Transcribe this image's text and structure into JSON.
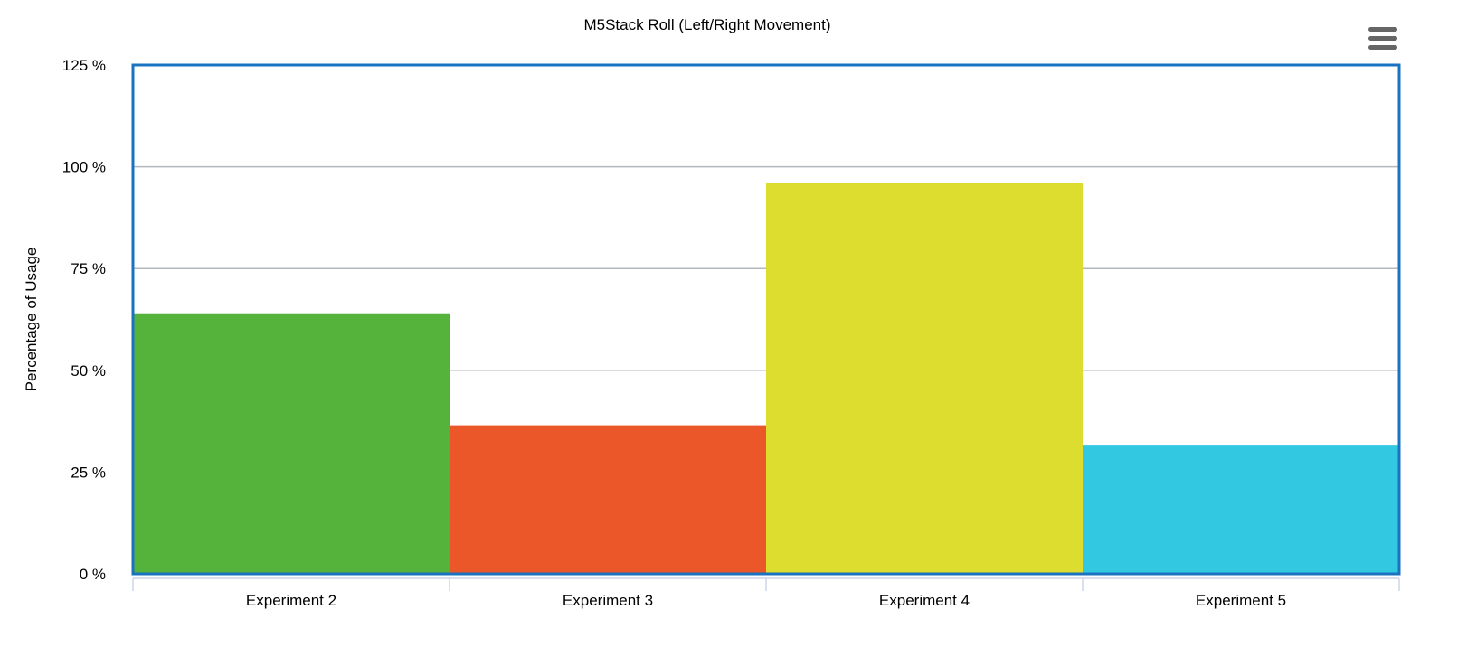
{
  "chart_data": {
    "type": "bar",
    "title": "M5Stack Roll (Left/Right Movement)",
    "xlabel": "",
    "ylabel": "Percentage of Usage",
    "categories": [
      "Experiment 2",
      "Experiment 3",
      "Experiment 4",
      "Experiment 5"
    ],
    "values": [
      64,
      36.5,
      96,
      31.5
    ],
    "colors": [
      "#55b23b",
      "#eb5729",
      "#dcdd2f",
      "#33c8e1"
    ],
    "ylim": [
      0,
      125
    ],
    "yticks": [
      0,
      25,
      50,
      75,
      100,
      125
    ],
    "ytick_labels": [
      "0 %",
      "25 %",
      "50 %",
      "75 %",
      "100 %",
      "125 %"
    ],
    "grid": true,
    "plot_border_color": "#1a73c0",
    "gridline_color": "#b3b8bf"
  },
  "menu": {
    "icon": "hamburger-menu-icon"
  }
}
